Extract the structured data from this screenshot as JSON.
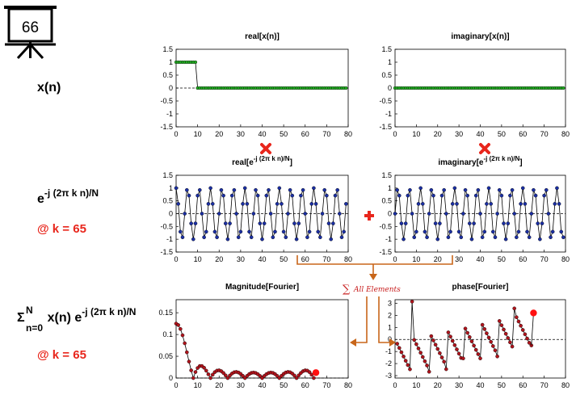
{
  "slide_number": "66",
  "labels": {
    "xn": "x(n)",
    "kernel_base": "e",
    "kernel_exp": "-j (2π k n)/N",
    "k_note_1": "@ k = 65",
    "sum_sigma": "Σ",
    "sum_upper": "N",
    "sum_lower": "n=0",
    "sum_body": "x(n) e",
    "sum_exp": "-j (2π k n)/N",
    "k_note_2": "@ k = 65",
    "all_elements": "All Elements"
  },
  "colors": {
    "green_marker": "#22b022",
    "blue_marker": "#1b2fa3",
    "red_marker": "#b0141c",
    "highlight": "#ff1010",
    "arrow": "#c8661a",
    "operator": "#e8261c"
  },
  "chart_data": [
    {
      "id": "real-xn",
      "type": "stem",
      "title": "real[x(n)]",
      "xlim": [
        0,
        80
      ],
      "ylim": [
        -1.5,
        1.5
      ],
      "xticks": [
        "0",
        "10",
        "20",
        "30",
        "40",
        "50",
        "60",
        "70",
        "80"
      ],
      "yticks": [
        "1.5",
        "1",
        "0.5",
        "0",
        "-0.5",
        "-1",
        "-1.5"
      ],
      "x_range": [
        0,
        79
      ],
      "values_rule": "1 for n = 0..9, 0 for n = 10..79",
      "marker": "green"
    },
    {
      "id": "imag-xn",
      "type": "stem",
      "title": "imaginary[x(n)]",
      "xlim": [
        0,
        80
      ],
      "ylim": [
        -1.5,
        1.5
      ],
      "xticks": [
        "0",
        "10",
        "20",
        "30",
        "40",
        "50",
        "60",
        "70",
        "80"
      ],
      "yticks": [
        "1.5",
        "1",
        "0.5",
        "0",
        "-0.5",
        "-1",
        "-1.5"
      ],
      "x_range": [
        0,
        79
      ],
      "values_rule": "0 for all n",
      "marker": "green"
    },
    {
      "id": "real-kernel",
      "type": "line",
      "title_base": "real[e",
      "title_exp": "-j (2π k n)/N",
      "title_end": "]",
      "xlim": [
        0,
        80
      ],
      "ylim": [
        -1.5,
        1.5
      ],
      "xticks": [
        "0",
        "10",
        "20",
        "30",
        "40",
        "50",
        "60",
        "70",
        "80"
      ],
      "yticks": [
        "1.5",
        "1",
        "0.5",
        "0",
        "-0.5",
        "-1",
        "-1.5"
      ],
      "x_range": [
        0,
        79
      ],
      "values_rule": "cos(2π · 65 · n / 80)",
      "marker": "blue"
    },
    {
      "id": "imag-kernel",
      "type": "line",
      "title_base": "imaginary[e",
      "title_exp": "-j (2π k n)/N",
      "title_end": "]",
      "xlim": [
        0,
        80
      ],
      "ylim": [
        -1.5,
        1.5
      ],
      "xticks": [
        "0",
        "10",
        "20",
        "30",
        "40",
        "50",
        "60",
        "70",
        "80"
      ],
      "yticks": [
        "1.5",
        "1",
        "0.5",
        "0",
        "-0.5",
        "-1",
        "-1.5"
      ],
      "x_range": [
        0,
        79
      ],
      "values_rule": "-sin(2π · 65 · n / 80)",
      "marker": "blue"
    },
    {
      "id": "magnitude",
      "type": "line",
      "title": "Magnitude[Fourier]",
      "xlim": [
        0,
        80
      ],
      "ylim": [
        0,
        0.18
      ],
      "xticks": [
        "0",
        "10",
        "20",
        "30",
        "40",
        "50",
        "60",
        "70",
        "80"
      ],
      "yticks": [
        "0.15",
        "0.1",
        "0.05",
        "0"
      ],
      "ytick_values": [
        0.15,
        0.1,
        0.05,
        0
      ],
      "x_range": [
        0,
        64
      ],
      "values_rule": "|sum over n=0..9 of e^(-j 2π k n / 80)| / 80 for k = 0..64",
      "highlight_k": 65,
      "highlight_value": 0.0125,
      "marker": "red"
    },
    {
      "id": "phase",
      "type": "line",
      "title": "phase[Fourier]",
      "xlim": [
        0,
        80
      ],
      "ylim": [
        -3.2,
        3.3
      ],
      "xticks": [
        "0",
        "10",
        "20",
        "30",
        "40",
        "50",
        "60",
        "70",
        "80"
      ],
      "yticks": [
        "3",
        "2",
        "1",
        "0",
        "-1",
        "-2",
        "-3"
      ],
      "ytick_values": [
        3,
        2,
        1,
        0,
        -1,
        -2,
        -3
      ],
      "x_range": [
        1,
        64
      ],
      "values_rule": "angle of sum over n=0..9 of e^(-j 2π k n / 80) for k = 1..64",
      "highlight_k": 65,
      "highlight_value": 2.2,
      "marker": "red"
    }
  ]
}
